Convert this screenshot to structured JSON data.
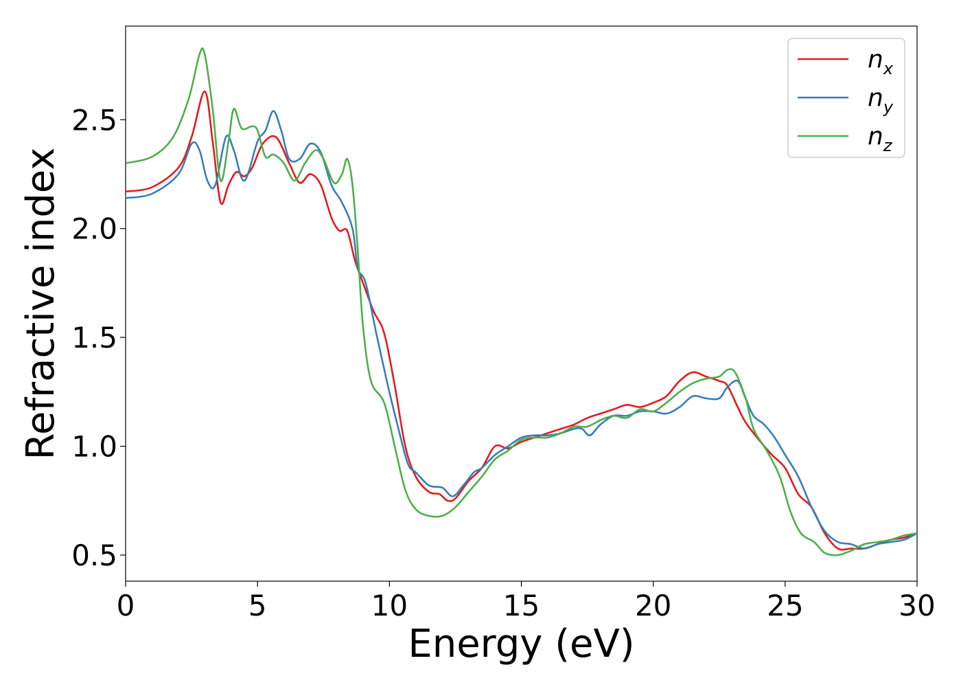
{
  "chart_data": {
    "type": "line",
    "xlabel": "Energy (eV)",
    "ylabel": "Refractive index",
    "xlim": [
      0,
      30
    ],
    "ylim": [
      0.38,
      2.93
    ],
    "xticks": [
      0,
      5,
      10,
      15,
      20,
      25,
      30
    ],
    "xtick_labels": [
      "0",
      "5",
      "10",
      "15",
      "20",
      "25",
      "30"
    ],
    "yticks": [
      0.5,
      1.0,
      1.5,
      2.0,
      2.5
    ],
    "ytick_labels": [
      "0.5",
      "1.0",
      "1.5",
      "2.0",
      "2.5"
    ],
    "grid": false,
    "legend_position": "top-right",
    "series": [
      {
        "name": "n",
        "subscript": "x",
        "color": "#e41a1c",
        "points": [
          [
            0,
            2.17
          ],
          [
            1,
            2.19
          ],
          [
            2,
            2.28
          ],
          [
            2.5,
            2.42
          ],
          [
            3,
            2.63
          ],
          [
            3.3,
            2.4
          ],
          [
            3.6,
            2.12
          ],
          [
            3.9,
            2.2
          ],
          [
            4.2,
            2.26
          ],
          [
            4.5,
            2.24
          ],
          [
            4.8,
            2.28
          ],
          [
            5.2,
            2.39
          ],
          [
            5.7,
            2.42
          ],
          [
            6.2,
            2.3
          ],
          [
            6.6,
            2.21
          ],
          [
            7.0,
            2.25
          ],
          [
            7.4,
            2.2
          ],
          [
            7.8,
            2.05
          ],
          [
            8.1,
            1.99
          ],
          [
            8.4,
            1.99
          ],
          [
            8.7,
            1.85
          ],
          [
            9.0,
            1.75
          ],
          [
            9.4,
            1.62
          ],
          [
            9.8,
            1.52
          ],
          [
            10.2,
            1.28
          ],
          [
            10.6,
            1.0
          ],
          [
            11.0,
            0.86
          ],
          [
            11.5,
            0.79
          ],
          [
            11.9,
            0.78
          ],
          [
            12.2,
            0.75
          ],
          [
            12.5,
            0.76
          ],
          [
            13.0,
            0.84
          ],
          [
            13.5,
            0.9
          ],
          [
            14.0,
            1.0
          ],
          [
            14.5,
            0.99
          ],
          [
            15,
            1.02
          ],
          [
            15.5,
            1.04
          ],
          [
            16,
            1.06
          ],
          [
            16.5,
            1.08
          ],
          [
            17,
            1.1
          ],
          [
            17.5,
            1.13
          ],
          [
            18,
            1.15
          ],
          [
            18.5,
            1.17
          ],
          [
            19,
            1.19
          ],
          [
            19.5,
            1.18
          ],
          [
            20,
            1.2
          ],
          [
            20.5,
            1.23
          ],
          [
            21,
            1.3
          ],
          [
            21.5,
            1.34
          ],
          [
            22,
            1.32
          ],
          [
            22.5,
            1.3
          ],
          [
            22.8,
            1.28
          ],
          [
            23.2,
            1.18
          ],
          [
            23.5,
            1.11
          ],
          [
            24,
            1.03
          ],
          [
            24.5,
            0.96
          ],
          [
            25,
            0.9
          ],
          [
            25.5,
            0.78
          ],
          [
            26,
            0.72
          ],
          [
            26.5,
            0.6
          ],
          [
            27,
            0.53
          ],
          [
            27.5,
            0.53
          ],
          [
            28,
            0.53
          ],
          [
            28.5,
            0.55
          ],
          [
            29,
            0.57
          ],
          [
            29.5,
            0.58
          ],
          [
            30,
            0.6
          ]
        ]
      },
      {
        "name": "n",
        "subscript": "y",
        "color": "#377eb8",
        "points": [
          [
            0,
            2.14
          ],
          [
            1,
            2.16
          ],
          [
            2,
            2.25
          ],
          [
            2.5,
            2.39
          ],
          [
            2.8,
            2.36
          ],
          [
            3.1,
            2.22
          ],
          [
            3.4,
            2.2
          ],
          [
            3.8,
            2.42
          ],
          [
            4.1,
            2.36
          ],
          [
            4.5,
            2.22
          ],
          [
            5.0,
            2.4
          ],
          [
            5.3,
            2.45
          ],
          [
            5.6,
            2.54
          ],
          [
            5.9,
            2.45
          ],
          [
            6.2,
            2.32
          ],
          [
            6.6,
            2.32
          ],
          [
            7.0,
            2.39
          ],
          [
            7.4,
            2.35
          ],
          [
            7.8,
            2.2
          ],
          [
            8.2,
            2.12
          ],
          [
            8.6,
            2.0
          ],
          [
            8.8,
            1.82
          ],
          [
            9.1,
            1.75
          ],
          [
            9.5,
            1.52
          ],
          [
            9.9,
            1.3
          ],
          [
            10.3,
            1.1
          ],
          [
            10.7,
            0.92
          ],
          [
            11.0,
            0.88
          ],
          [
            11.5,
            0.82
          ],
          [
            12.0,
            0.81
          ],
          [
            12.4,
            0.77
          ],
          [
            12.8,
            0.82
          ],
          [
            13.2,
            0.88
          ],
          [
            13.5,
            0.9
          ],
          [
            14,
            0.96
          ],
          [
            14.5,
            1.0
          ],
          [
            15,
            1.04
          ],
          [
            15.5,
            1.05
          ],
          [
            16,
            1.05
          ],
          [
            16.5,
            1.06
          ],
          [
            17,
            1.08
          ],
          [
            17.3,
            1.08
          ],
          [
            17.6,
            1.05
          ],
          [
            18,
            1.1
          ],
          [
            18.5,
            1.14
          ],
          [
            19,
            1.14
          ],
          [
            19.5,
            1.16
          ],
          [
            20,
            1.16
          ],
          [
            20.5,
            1.15
          ],
          [
            21,
            1.18
          ],
          [
            21.5,
            1.23
          ],
          [
            22,
            1.22
          ],
          [
            22.5,
            1.22
          ],
          [
            22.8,
            1.27
          ],
          [
            23.2,
            1.3
          ],
          [
            23.5,
            1.22
          ],
          [
            23.8,
            1.14
          ],
          [
            24.2,
            1.1
          ],
          [
            24.6,
            1.04
          ],
          [
            25,
            0.96
          ],
          [
            25.5,
            0.86
          ],
          [
            26,
            0.72
          ],
          [
            26.5,
            0.61
          ],
          [
            27,
            0.56
          ],
          [
            27.5,
            0.55
          ],
          [
            28,
            0.53
          ],
          [
            28.5,
            0.55
          ],
          [
            29,
            0.56
          ],
          [
            29.5,
            0.57
          ],
          [
            30,
            0.6
          ]
        ]
      },
      {
        "name": "n",
        "subscript": "z",
        "color": "#4daf4a",
        "points": [
          [
            0,
            2.3
          ],
          [
            1,
            2.33
          ],
          [
            1.8,
            2.42
          ],
          [
            2.4,
            2.6
          ],
          [
            2.8,
            2.8
          ],
          [
            3.0,
            2.8
          ],
          [
            3.3,
            2.55
          ],
          [
            3.6,
            2.22
          ],
          [
            3.9,
            2.4
          ],
          [
            4.1,
            2.55
          ],
          [
            4.4,
            2.46
          ],
          [
            4.8,
            2.47
          ],
          [
            5.0,
            2.45
          ],
          [
            5.3,
            2.33
          ],
          [
            5.6,
            2.34
          ],
          [
            6.0,
            2.3
          ],
          [
            6.4,
            2.22
          ],
          [
            6.8,
            2.3
          ],
          [
            7.2,
            2.36
          ],
          [
            7.5,
            2.32
          ],
          [
            7.9,
            2.21
          ],
          [
            8.2,
            2.25
          ],
          [
            8.4,
            2.32
          ],
          [
            8.6,
            2.2
          ],
          [
            8.8,
            1.9
          ],
          [
            9.0,
            1.55
          ],
          [
            9.3,
            1.3
          ],
          [
            9.8,
            1.2
          ],
          [
            10.2,
            1.0
          ],
          [
            10.6,
            0.8
          ],
          [
            11.0,
            0.71
          ],
          [
            11.5,
            0.68
          ],
          [
            12.0,
            0.68
          ],
          [
            12.5,
            0.72
          ],
          [
            13.0,
            0.79
          ],
          [
            13.5,
            0.86
          ],
          [
            14.0,
            0.94
          ],
          [
            14.5,
            0.98
          ],
          [
            15,
            1.03
          ],
          [
            15.5,
            1.04
          ],
          [
            16,
            1.04
          ],
          [
            16.5,
            1.06
          ],
          [
            17,
            1.09
          ],
          [
            17.5,
            1.09
          ],
          [
            18,
            1.12
          ],
          [
            18.5,
            1.14
          ],
          [
            19,
            1.13
          ],
          [
            19.5,
            1.17
          ],
          [
            20,
            1.16
          ],
          [
            20.5,
            1.2
          ],
          [
            21,
            1.25
          ],
          [
            21.5,
            1.29
          ],
          [
            22,
            1.31
          ],
          [
            22.5,
            1.32
          ],
          [
            22.8,
            1.35
          ],
          [
            23.1,
            1.34
          ],
          [
            23.5,
            1.22
          ],
          [
            23.8,
            1.08
          ],
          [
            24.3,
            0.98
          ],
          [
            24.8,
            0.86
          ],
          [
            25.2,
            0.7
          ],
          [
            25.6,
            0.6
          ],
          [
            26.1,
            0.56
          ],
          [
            26.5,
            0.51
          ],
          [
            27,
            0.5
          ],
          [
            27.5,
            0.52
          ],
          [
            28,
            0.55
          ],
          [
            28.5,
            0.56
          ],
          [
            29,
            0.57
          ],
          [
            29.5,
            0.59
          ],
          [
            30,
            0.6
          ]
        ]
      }
    ]
  }
}
